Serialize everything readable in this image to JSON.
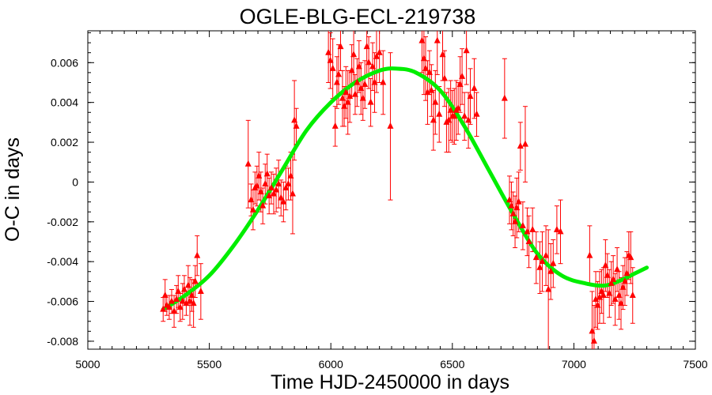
{
  "chart_data": {
    "type": "scatter",
    "title": "OGLE-BLG-ECL-219738",
    "xlabel": "Time HJD-2450000 in days",
    "ylabel": "O-C in days",
    "xlim": [
      5000,
      7500
    ],
    "ylim": [
      -0.0084,
      0.0076
    ],
    "x_ticks": [
      5000,
      5500,
      6000,
      6500,
      7000,
      7500
    ],
    "x_tick_labels": [
      "5000",
      "5500",
      "6000",
      "6500",
      "7000",
      "7500"
    ],
    "y_ticks": [
      -0.008,
      -0.006,
      -0.004,
      -0.002,
      0,
      0.002,
      0.004,
      0.006
    ],
    "y_tick_labels": [
      "-0.008",
      "-0.006",
      "-0.004",
      "-0.002",
      "0",
      "0.002",
      "0.004",
      "0.006"
    ],
    "grid": false,
    "marker_color": "#ff0000",
    "fit_color": "#00ee00",
    "series": [
      {
        "kind": "points_with_errorbars",
        "points": [
          [
            5310,
            -0.0064,
            0.0006
          ],
          [
            5318,
            -0.0057,
            0.0008
          ],
          [
            5325,
            -0.0062,
            0.0005
          ],
          [
            5335,
            -0.0063,
            0.0006
          ],
          [
            5345,
            -0.006,
            0.0006
          ],
          [
            5355,
            -0.0065,
            0.0008
          ],
          [
            5365,
            -0.0059,
            0.0007
          ],
          [
            5372,
            -0.0055,
            0.0008
          ],
          [
            5380,
            -0.0063,
            0.0007
          ],
          [
            5390,
            -0.006,
            0.0009
          ],
          [
            5397,
            -0.0054,
            0.0007
          ],
          [
            5405,
            -0.0061,
            0.0006
          ],
          [
            5413,
            -0.0052,
            0.001
          ],
          [
            5420,
            -0.006,
            0.0012
          ],
          [
            5428,
            -0.0057,
            0.0008
          ],
          [
            5435,
            -0.0061,
            0.0012
          ],
          [
            5442,
            -0.005,
            0.0008
          ],
          [
            5450,
            -0.0037,
            0.001
          ],
          [
            5465,
            -0.0055,
            0.0014
          ],
          [
            5660,
            0.0009,
            0.0022
          ],
          [
            5672,
            -0.0009,
            0.0008
          ],
          [
            5680,
            -0.0014,
            0.001
          ],
          [
            5688,
            -0.0003,
            0.0008
          ],
          [
            5696,
            -0.0002,
            0.001
          ],
          [
            5704,
            0.0003,
            0.0012
          ],
          [
            5712,
            -0.0005,
            0.001
          ],
          [
            5720,
            -0.0012,
            0.0009
          ],
          [
            5730,
            -0.0001,
            0.001
          ],
          [
            5738,
            0.0004,
            0.001
          ],
          [
            5746,
            -0.0007,
            0.0009
          ],
          [
            5755,
            -0.0003,
            0.0008
          ],
          [
            5765,
            -0.0006,
            0.001
          ],
          [
            5775,
            -0.0004,
            0.0011
          ],
          [
            5785,
            -0.0001,
            0.0012
          ],
          [
            5795,
            -0.0008,
            0.0009
          ],
          [
            5805,
            -0.001,
            0.001
          ],
          [
            5815,
            -0.0003,
            0.0011
          ],
          [
            5825,
            -0.0001,
            0.0008
          ],
          [
            5835,
            0.0003,
            0.0012
          ],
          [
            5843,
            -0.0006,
            0.002
          ],
          [
            5850,
            0.0031,
            0.002
          ],
          [
            5858,
            0.0028,
            0.0009
          ],
          [
            5990,
            0.0065,
            0.0015
          ],
          [
            5998,
            0.0061,
            0.0014
          ],
          [
            6008,
            0.0057,
            0.0015
          ],
          [
            6018,
            0.0028,
            0.001
          ],
          [
            6025,
            0.005,
            0.0013
          ],
          [
            6032,
            0.0054,
            0.0015
          ],
          [
            6040,
            0.0068,
            0.0012
          ],
          [
            6048,
            0.0042,
            0.0014
          ],
          [
            6055,
            0.0038,
            0.001
          ],
          [
            6062,
            0.0045,
            0.0013
          ],
          [
            6070,
            0.004,
            0.0016
          ],
          [
            6078,
            0.0043,
            0.0013
          ],
          [
            6086,
            0.0056,
            0.0013
          ],
          [
            6094,
            0.0064,
            0.0014
          ],
          [
            6100,
            0.0044,
            0.001
          ],
          [
            6108,
            0.005,
            0.0012
          ],
          [
            6116,
            0.0058,
            0.0013
          ],
          [
            6124,
            0.0047,
            0.0013
          ],
          [
            6132,
            0.0042,
            0.0011
          ],
          [
            6140,
            0.0049,
            0.0012
          ],
          [
            6148,
            0.0068,
            0.0015
          ],
          [
            6156,
            0.006,
            0.0013
          ],
          [
            6164,
            0.004,
            0.0012
          ],
          [
            6172,
            0.0058,
            0.0012
          ],
          [
            6180,
            0.005,
            0.0015
          ],
          [
            6188,
            0.0063,
            0.0018
          ],
          [
            6200,
            0.0065,
            0.0015
          ],
          [
            6215,
            0.005,
            0.0016
          ],
          [
            6245,
            0.0028,
            0.0037
          ],
          [
            6375,
            0.0071,
            0.0016
          ],
          [
            6383,
            0.0062,
            0.0018
          ],
          [
            6390,
            0.0057,
            0.0016
          ],
          [
            6398,
            0.0045,
            0.0016
          ],
          [
            6406,
            0.0055,
            0.0011
          ],
          [
            6414,
            0.0046,
            0.0013
          ],
          [
            6422,
            0.0031,
            0.0015
          ],
          [
            6430,
            0.004,
            0.0016
          ],
          [
            6438,
            0.0071,
            0.0017
          ],
          [
            6446,
            0.0034,
            0.0014
          ],
          [
            6460,
            0.0064,
            0.0013
          ],
          [
            6468,
            0.0052,
            0.0014
          ],
          [
            6476,
            0.003,
            0.0015
          ],
          [
            6485,
            0.0031,
            0.0016
          ],
          [
            6493,
            0.0036,
            0.0015
          ],
          [
            6500,
            0.0033,
            0.0013
          ],
          [
            6508,
            0.0033,
            0.0014
          ],
          [
            6516,
            0.0036,
            0.0015
          ],
          [
            6524,
            0.0037,
            0.0013
          ],
          [
            6532,
            0.0049,
            0.0014
          ],
          [
            6540,
            0.0053,
            0.0014
          ],
          [
            6550,
            0.0033,
            0.0012
          ],
          [
            6558,
            0.0066,
            0.0017
          ],
          [
            6566,
            0.0031,
            0.0014
          ],
          [
            6574,
            0.0043,
            0.0014
          ],
          [
            6590,
            0.0047,
            0.0015
          ],
          [
            6600,
            0.0034,
            0.0011
          ],
          [
            6715,
            0.0042,
            0.002
          ],
          [
            6735,
            -0.0009,
            0.0012
          ],
          [
            6743,
            -0.0012,
            0.0012
          ],
          [
            6750,
            -0.0016,
            0.0011
          ],
          [
            6758,
            -0.002,
            0.0013
          ],
          [
            6765,
            -0.0013,
            0.0015
          ],
          [
            6773,
            -0.001,
            0.0015
          ],
          [
            6780,
            0.0018,
            0.0012
          ],
          [
            6790,
            -0.0022,
            0.0012
          ],
          [
            6800,
            0.0019,
            0.0019
          ],
          [
            6808,
            -0.0025,
            0.0012
          ],
          [
            6815,
            -0.003,
            0.0013
          ],
          [
            6830,
            -0.0024,
            0.0011
          ],
          [
            6845,
            -0.0038,
            0.0013
          ],
          [
            6860,
            -0.0043,
            0.0013
          ],
          [
            6870,
            -0.004,
            0.0015
          ],
          [
            6885,
            -0.0037,
            0.0015
          ],
          [
            6895,
            -0.0054,
            0.003
          ],
          [
            6905,
            -0.0045,
            0.0014
          ],
          [
            6915,
            -0.0041,
            0.0012
          ],
          [
            6930,
            -0.0024,
            0.0012
          ],
          [
            6945,
            -0.0025,
            0.0016
          ],
          [
            7065,
            -0.0037,
            0.0015
          ],
          [
            7075,
            -0.0075,
            0.002
          ],
          [
            7083,
            -0.008,
            0.0018
          ],
          [
            7090,
            -0.0059,
            0.0014
          ],
          [
            7098,
            -0.0062,
            0.0012
          ],
          [
            7106,
            -0.0058,
            0.0013
          ],
          [
            7114,
            -0.0055,
            0.0011
          ],
          [
            7122,
            -0.0057,
            0.0014
          ],
          [
            7130,
            -0.0042,
            0.0013
          ],
          [
            7138,
            -0.0047,
            0.0011
          ],
          [
            7146,
            -0.0056,
            0.0012
          ],
          [
            7154,
            -0.0051,
            0.0011
          ],
          [
            7162,
            -0.0049,
            0.0012
          ],
          [
            7170,
            -0.0059,
            0.0013
          ],
          [
            7178,
            -0.0044,
            0.0011
          ],
          [
            7186,
            -0.0057,
            0.0012
          ],
          [
            7194,
            -0.0061,
            0.0013
          ],
          [
            7202,
            -0.0053,
            0.0011
          ],
          [
            7210,
            -0.005,
            0.0012
          ],
          [
            7218,
            -0.0046,
            0.0011
          ],
          [
            7226,
            -0.0037,
            0.0012
          ],
          [
            7234,
            -0.0038,
            0.0013
          ],
          [
            7242,
            -0.0057,
            0.0014
          ]
        ]
      },
      {
        "kind": "fit_curve",
        "x": [
          5310,
          5400,
          5500,
          5600,
          5700,
          5800,
          5900,
          6000,
          6100,
          6200,
          6270,
          6350,
          6450,
          6550,
          6650,
          6750,
          6850,
          6950,
          7050,
          7130,
          7200,
          7250,
          7300
        ],
        "y": [
          -0.0064,
          -0.0057,
          -0.0047,
          -0.0032,
          -0.0014,
          0.0006,
          0.0026,
          0.004,
          0.005,
          0.0056,
          0.0057,
          0.0055,
          0.0046,
          0.0028,
          0.0006,
          -0.0016,
          -0.0036,
          -0.0047,
          -0.0051,
          -0.0052,
          -0.0049,
          -0.0046,
          -0.0043
        ]
      }
    ]
  }
}
